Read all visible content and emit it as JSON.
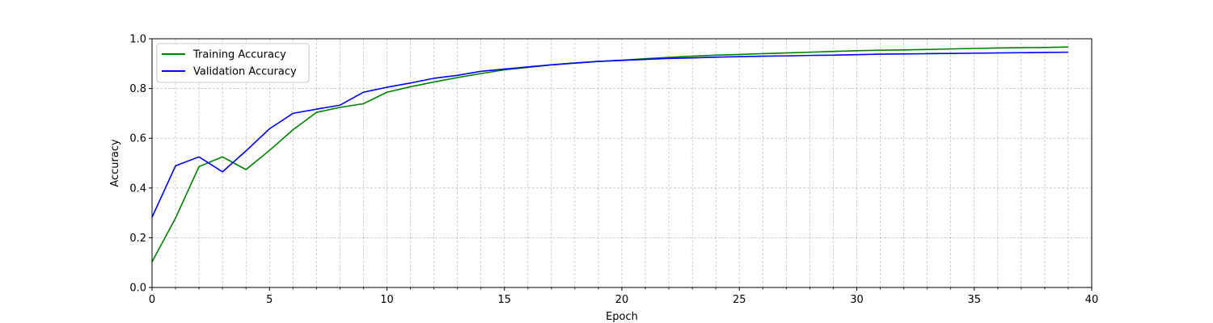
{
  "chart_data": {
    "type": "line",
    "xlabel": "Epoch",
    "ylabel": "Accuracy",
    "xlim": [
      0,
      40
    ],
    "ylim": [
      0.0,
      1.0
    ],
    "x_ticks": [
      "0",
      "5",
      "10",
      "15",
      "20",
      "25",
      "30",
      "35",
      "40"
    ],
    "y_ticks": [
      "0.0",
      "0.2",
      "0.4",
      "0.6",
      "0.8",
      "1.0"
    ],
    "grid": true,
    "grid_style": "dashed, major and minor",
    "legend_position": "upper-left",
    "x": [
      0,
      1,
      2,
      3,
      4,
      5,
      6,
      7,
      8,
      9,
      10,
      11,
      12,
      13,
      14,
      15,
      16,
      17,
      18,
      19,
      20,
      21,
      22,
      23,
      24,
      25,
      26,
      27,
      28,
      29,
      30,
      31,
      32,
      33,
      34,
      35,
      36,
      37,
      38,
      39
    ],
    "series": [
      {
        "name": "Training Accuracy",
        "color": "#008000",
        "values": [
          0.103,
          0.279,
          0.486,
          0.525,
          0.474,
          0.551,
          0.634,
          0.704,
          0.724,
          0.739,
          0.785,
          0.807,
          0.826,
          0.844,
          0.86,
          0.875,
          0.885,
          0.895,
          0.903,
          0.909,
          0.914,
          0.92,
          0.925,
          0.93,
          0.934,
          0.937,
          0.94,
          0.943,
          0.946,
          0.949,
          0.952,
          0.954,
          0.955,
          0.957,
          0.959,
          0.961,
          0.963,
          0.964,
          0.965,
          0.967
        ]
      },
      {
        "name": "Validation Accuracy",
        "color": "#0000ff",
        "values": [
          0.282,
          0.489,
          0.525,
          0.465,
          0.549,
          0.638,
          0.7,
          0.717,
          0.733,
          0.785,
          0.805,
          0.822,
          0.841,
          0.853,
          0.869,
          0.878,
          0.887,
          0.895,
          0.902,
          0.909,
          0.913,
          0.917,
          0.921,
          0.923,
          0.926,
          0.928,
          0.93,
          0.931,
          0.933,
          0.934,
          0.936,
          0.938,
          0.939,
          0.94,
          0.941,
          0.942,
          0.943,
          0.944,
          0.945,
          0.946
        ]
      }
    ]
  }
}
